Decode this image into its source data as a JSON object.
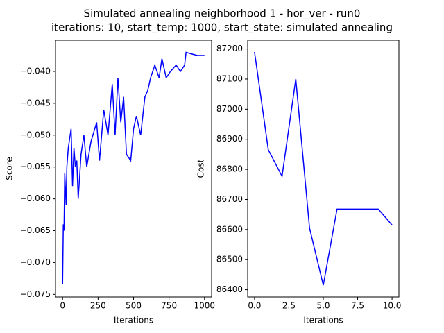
{
  "title": [
    "Simulated annealing neighborhood 1 - hor_ver - run0",
    "iterations: 10, start_temp: 1000, start_state: simulated annealing"
  ],
  "chart_data": [
    {
      "type": "line",
      "x_label": "Iterations",
      "y_label": "Score",
      "x": [
        0,
        5,
        10,
        15,
        25,
        30,
        40,
        60,
        70,
        80,
        90,
        100,
        110,
        130,
        150,
        170,
        200,
        240,
        260,
        290,
        320,
        350,
        370,
        390,
        410,
        430,
        450,
        480,
        500,
        520,
        550,
        580,
        600,
        620,
        650,
        680,
        700,
        730,
        760,
        800,
        830,
        860,
        870,
        900,
        950,
        1000
      ],
      "series": [
        {
          "color": "#0000ff",
          "values": [
            -0.0734,
            -0.064,
            -0.065,
            -0.056,
            -0.061,
            -0.055,
            -0.052,
            -0.049,
            -0.058,
            -0.052,
            -0.055,
            -0.054,
            -0.06,
            -0.053,
            -0.05,
            -0.055,
            -0.051,
            -0.048,
            -0.054,
            -0.046,
            -0.05,
            -0.042,
            -0.05,
            -0.041,
            -0.048,
            -0.044,
            -0.053,
            -0.054,
            -0.049,
            -0.047,
            -0.05,
            -0.044,
            -0.043,
            -0.041,
            -0.039,
            -0.041,
            -0.038,
            -0.041,
            -0.04,
            -0.039,
            -0.04,
            -0.039,
            -0.037,
            -0.0372,
            -0.0375,
            -0.0375
          ]
        }
      ],
      "xlim": [
        -50,
        1050
      ],
      "xticks": [
        0,
        250,
        500,
        750,
        1000
      ],
      "ylim": [
        -0.0754,
        -0.0351
      ],
      "yticks": [
        {
          "value": -0.075,
          "label": "−0.075"
        },
        {
          "value": -0.07,
          "label": "−0.070"
        },
        {
          "value": -0.065,
          "label": "−0.065"
        },
        {
          "value": -0.06,
          "label": "−0.060"
        },
        {
          "value": -0.055,
          "label": "−0.055"
        },
        {
          "value": -0.05,
          "label": "−0.050"
        },
        {
          "value": -0.045,
          "label": "−0.045"
        },
        {
          "value": -0.04,
          "label": "−0.040"
        }
      ]
    },
    {
      "type": "line",
      "x_label": "Iterations",
      "y_label": "Cost",
      "x": [
        0,
        1,
        2,
        3,
        4,
        5,
        6,
        7,
        8,
        9,
        10
      ],
      "series": [
        {
          "color": "#0000ff",
          "values": [
            87190,
            86865,
            86777,
            87100,
            86605,
            86415,
            86668,
            86668,
            86668,
            86668,
            86615
          ]
        }
      ],
      "xlim": [
        -0.5,
        10.5
      ],
      "xticks": [
        {
          "value": 0,
          "label": "0.0"
        },
        {
          "value": 2.5,
          "label": "2.5"
        },
        {
          "value": 5,
          "label": "5.0"
        },
        {
          "value": 7.5,
          "label": "7.5"
        },
        {
          "value": 10,
          "label": "10.0"
        }
      ],
      "ylim": [
        86376,
        87229
      ],
      "yticks": [
        86400,
        86500,
        86600,
        86700,
        86800,
        86900,
        87000,
        87100,
        87200
      ]
    }
  ]
}
